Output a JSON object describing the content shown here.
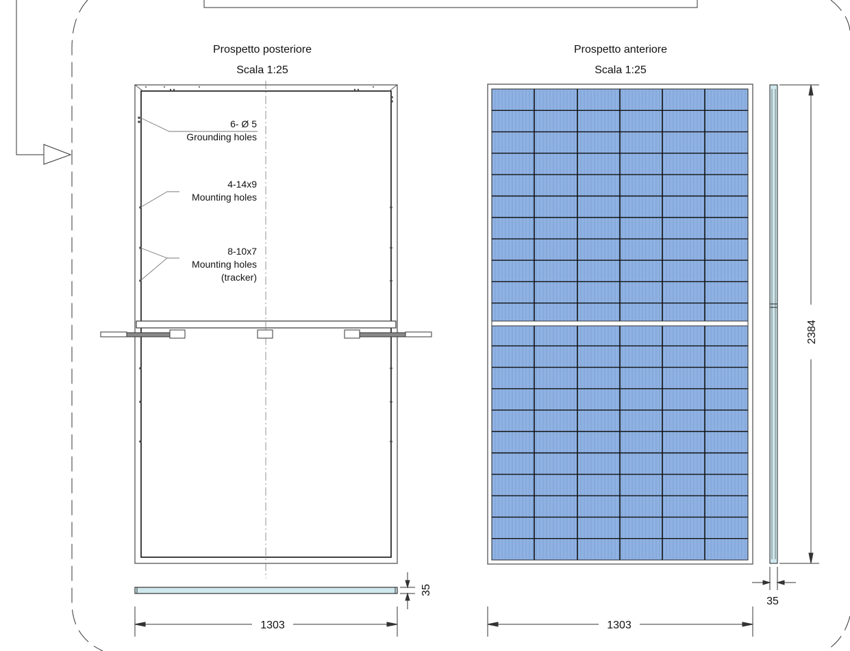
{
  "rear_view": {
    "title": "Prospetto posteriore",
    "scale": "Scala 1:25",
    "callouts": [
      {
        "count": "6- Ø 5",
        "desc": "Grounding holes"
      },
      {
        "count": "4-14x9",
        "desc": "Mounting holes"
      },
      {
        "count": "8-10x7",
        "desc": "Mounting holes",
        "note": "(tracker)"
      }
    ],
    "width_dim": "1303",
    "thickness_dim": "35"
  },
  "front_view": {
    "title": "Prospetto anteriore",
    "scale": "Scala 1:25",
    "width_dim": "1303",
    "height_dim": "2384",
    "thickness_dim": "35"
  },
  "colors": {
    "cell": "#8fb2e3",
    "line": "#111111",
    "frame": "#555555",
    "glass": "#cfe8ee"
  }
}
